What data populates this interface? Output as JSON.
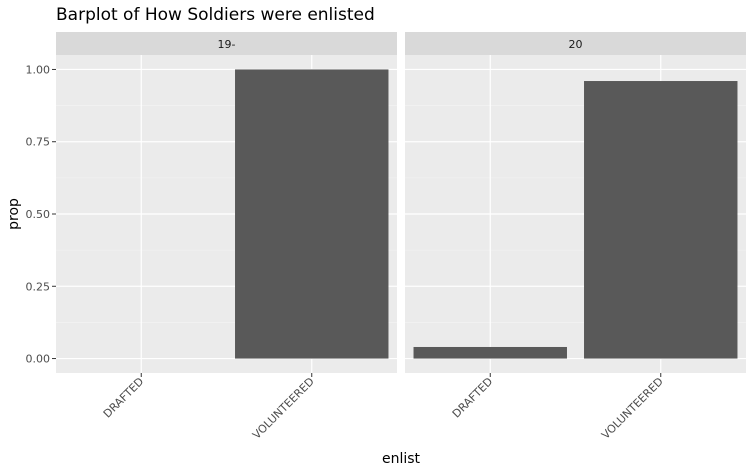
{
  "chart_data": {
    "type": "bar",
    "title": "Barplot of How Soldiers were enlisted",
    "xlabel": "enlist",
    "ylabel": "prop",
    "ylim": [
      -0.05,
      1.05
    ],
    "yticks": [
      "0.00",
      "0.25",
      "0.50",
      "0.75",
      "1.00"
    ],
    "categories": [
      "DRAFTED",
      "VOLUNTEERED"
    ],
    "facets": [
      {
        "name": "19-",
        "values": [
          0.0,
          1.0
        ]
      },
      {
        "name": "20",
        "values": [
          0.04,
          0.96
        ]
      }
    ],
    "bar_color": "#595959",
    "panel_color": "#ebebeb",
    "strip_color": "#d9d9d9",
    "grid": true
  }
}
